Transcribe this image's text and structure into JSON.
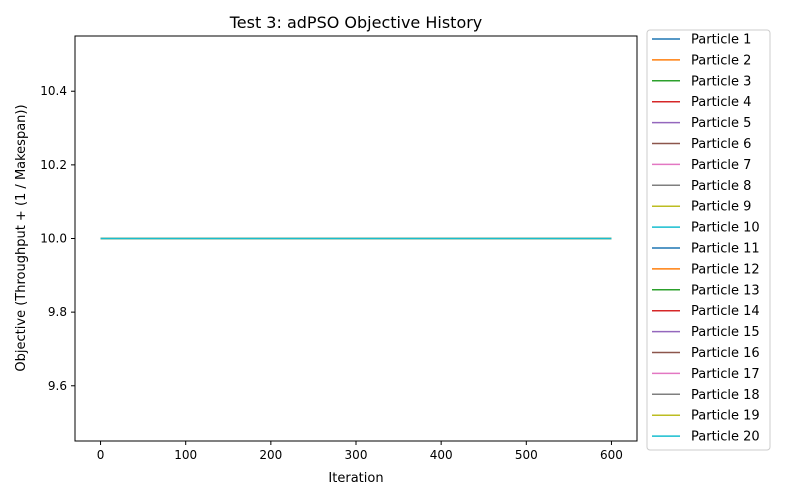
{
  "chart_data": {
    "type": "line",
    "title": "Test 3: adPSO Objective History",
    "xlabel": "Iteration",
    "ylabel": "Objective (Throughput + (1 / Makespan))",
    "xlim": [
      -30,
      630
    ],
    "ylim": [
      9.45,
      10.55
    ],
    "xticks": [
      0,
      100,
      200,
      300,
      400,
      500,
      600
    ],
    "yticks": [
      9.6,
      9.8,
      10.0,
      10.2,
      10.4
    ],
    "ytick_labels": [
      "9.6",
      "9.8",
      "10.0",
      "10.2",
      "10.4"
    ],
    "grid": false,
    "legend_position": "outside-right",
    "series": [
      {
        "name": "Particle 1",
        "color": "#1f77b4",
        "x": [
          0,
          600
        ],
        "y": [
          10.0,
          10.0
        ]
      },
      {
        "name": "Particle 2",
        "color": "#ff7f0e",
        "x": [
          0,
          600
        ],
        "y": [
          10.0,
          10.0
        ]
      },
      {
        "name": "Particle 3",
        "color": "#2ca02c",
        "x": [
          0,
          600
        ],
        "y": [
          10.0,
          10.0
        ]
      },
      {
        "name": "Particle 4",
        "color": "#d62728",
        "x": [
          0,
          600
        ],
        "y": [
          10.0,
          10.0
        ]
      },
      {
        "name": "Particle 5",
        "color": "#9467bd",
        "x": [
          0,
          600
        ],
        "y": [
          10.0,
          10.0
        ]
      },
      {
        "name": "Particle 6",
        "color": "#8c564b",
        "x": [
          0,
          600
        ],
        "y": [
          10.0,
          10.0
        ]
      },
      {
        "name": "Particle 7",
        "color": "#e377c2",
        "x": [
          0,
          600
        ],
        "y": [
          10.0,
          10.0
        ]
      },
      {
        "name": "Particle 8",
        "color": "#7f7f7f",
        "x": [
          0,
          600
        ],
        "y": [
          10.0,
          10.0
        ]
      },
      {
        "name": "Particle 9",
        "color": "#bcbd22",
        "x": [
          0,
          600
        ],
        "y": [
          10.0,
          10.0
        ]
      },
      {
        "name": "Particle 10",
        "color": "#17becf",
        "x": [
          0,
          600
        ],
        "y": [
          10.0,
          10.0
        ]
      },
      {
        "name": "Particle 11",
        "color": "#1f77b4",
        "x": [
          0,
          600
        ],
        "y": [
          10.0,
          10.0
        ]
      },
      {
        "name": "Particle 12",
        "color": "#ff7f0e",
        "x": [
          0,
          600
        ],
        "y": [
          10.0,
          10.0
        ]
      },
      {
        "name": "Particle 13",
        "color": "#2ca02c",
        "x": [
          0,
          600
        ],
        "y": [
          10.0,
          10.0
        ]
      },
      {
        "name": "Particle 14",
        "color": "#d62728",
        "x": [
          0,
          600
        ],
        "y": [
          10.0,
          10.0
        ]
      },
      {
        "name": "Particle 15",
        "color": "#9467bd",
        "x": [
          0,
          600
        ],
        "y": [
          10.0,
          10.0
        ]
      },
      {
        "name": "Particle 16",
        "color": "#8c564b",
        "x": [
          0,
          600
        ],
        "y": [
          10.0,
          10.0
        ]
      },
      {
        "name": "Particle 17",
        "color": "#e377c2",
        "x": [
          0,
          600
        ],
        "y": [
          10.0,
          10.0
        ]
      },
      {
        "name": "Particle 18",
        "color": "#7f7f7f",
        "x": [
          0,
          600
        ],
        "y": [
          10.0,
          10.0
        ]
      },
      {
        "name": "Particle 19",
        "color": "#bcbd22",
        "x": [
          0,
          600
        ],
        "y": [
          10.0,
          10.0
        ]
      },
      {
        "name": "Particle 20",
        "color": "#17becf",
        "x": [
          0,
          600
        ],
        "y": [
          10.0,
          10.0
        ]
      }
    ]
  }
}
